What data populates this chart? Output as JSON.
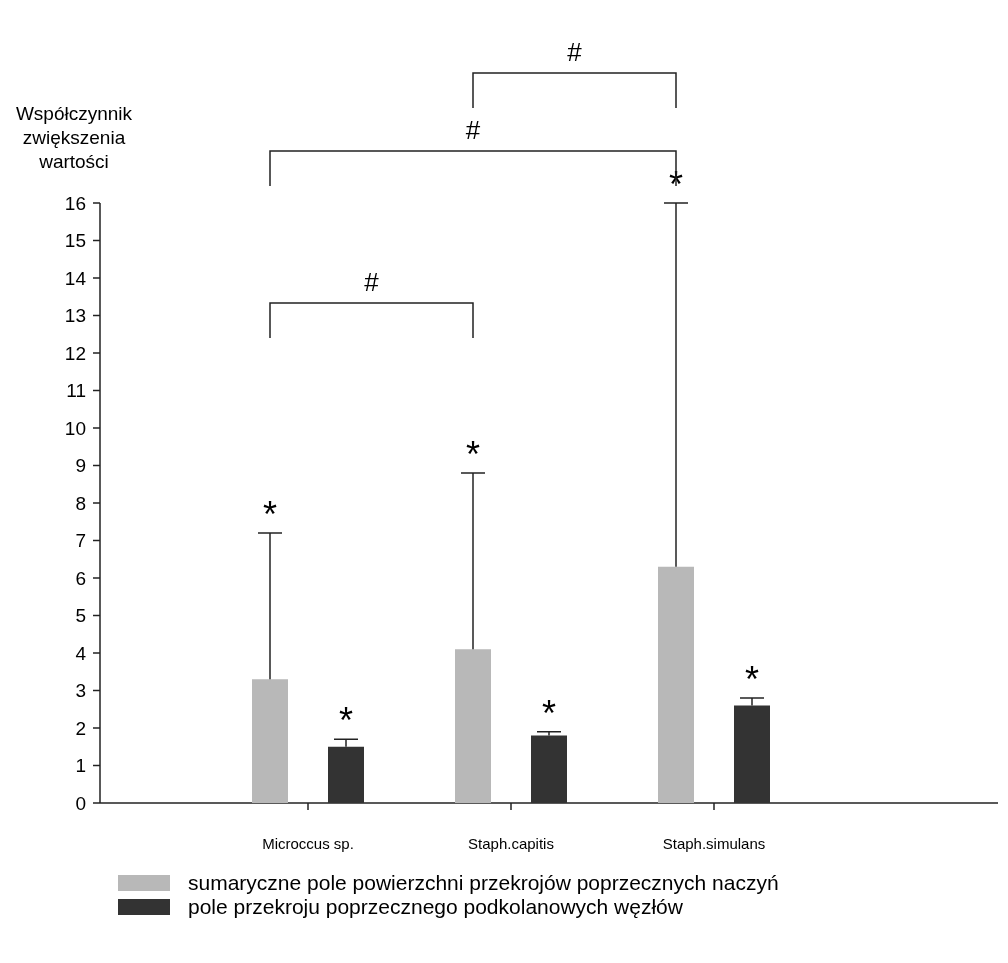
{
  "chart_data": {
    "type": "bar",
    "ylabel": "Współczynnik zwiększenia wartości",
    "categories": [
      "Microccus sp.",
      "Staph.capitis",
      "Staph.simulans"
    ],
    "series": [
      {
        "name": "sumaryczne pole powierzchni przekrojów poprzecznych naczyń",
        "color": "#b8b8b8",
        "values": [
          3.3,
          4.1,
          6.3
        ],
        "errors": [
          [
            3.3,
            7.2
          ],
          [
            4.1,
            8.8
          ],
          [
            6.3,
            16
          ]
        ]
      },
      {
        "name": "pole przekroju poprzecznego podkolanowych  węzłów",
        "color": "#333333",
        "values": [
          1.5,
          1.8,
          2.6
        ],
        "errors": [
          [
            1.5,
            1.7
          ],
          [
            1.8,
            1.9
          ],
          [
            2.6,
            2.8
          ]
        ]
      }
    ],
    "ylim": [
      0,
      16
    ],
    "yticks": [
      0,
      1,
      2,
      3,
      4,
      5,
      6,
      7,
      8,
      9,
      10,
      11,
      12,
      13,
      14,
      15,
      16
    ],
    "legend": "bottom",
    "annotations": [
      "*",
      "*",
      "*",
      "*",
      "*",
      "*",
      "#",
      "#",
      "#"
    ]
  }
}
